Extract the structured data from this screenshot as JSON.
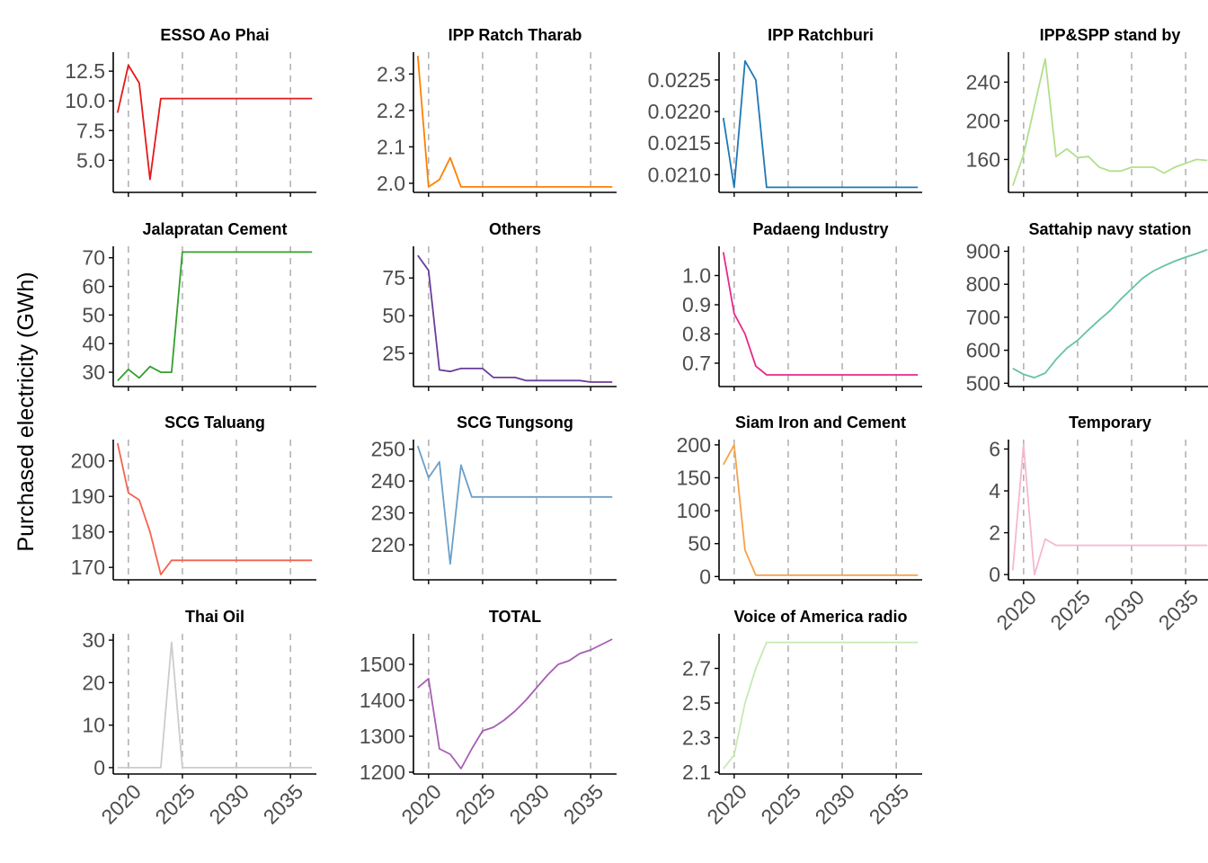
{
  "chart_data": {
    "type": "line",
    "ylabel": "Purchased electricity (GWh)",
    "xlabel": "",
    "grid": "dashed vertical lines at x ticks",
    "x_ticks": [
      "2020",
      "2025",
      "2030",
      "2035"
    ],
    "years": [
      2019,
      2020,
      2021,
      2022,
      2023,
      2024,
      2025,
      2026,
      2027,
      2028,
      2029,
      2030,
      2031,
      2032,
      2033,
      2034,
      2035,
      2036,
      2037
    ],
    "panels": [
      {
        "title": "ESSO Ao Phai",
        "color": "#e31a1c",
        "ylim": [
          2.3,
          14.1
        ],
        "yticks": [
          "12.5",
          "10.0",
          "7.5",
          "5.0"
        ],
        "ytick_values": [
          12.5,
          10,
          7.5,
          5
        ],
        "values": [
          9,
          13,
          11.5,
          3.4,
          10.2,
          10.2,
          10.2,
          10.2,
          10.2,
          10.2,
          10.2,
          10.2,
          10.2,
          10.2,
          10.2,
          10.2,
          10.2,
          10.2,
          10.2
        ]
      },
      {
        "title": "IPP Ratch Tharab",
        "color": "#ff7f00",
        "ylim": [
          1.975,
          2.36
        ],
        "yticks": [
          "2.3",
          "2.2",
          "2.1",
          "2.0"
        ],
        "ytick_values": [
          2.3,
          2.2,
          2.1,
          2.0
        ],
        "values": [
          2.35,
          1.99,
          2.01,
          2.07,
          1.99,
          1.99,
          1.99,
          1.99,
          1.99,
          1.99,
          1.99,
          1.99,
          1.99,
          1.99,
          1.99,
          1.99,
          1.99,
          1.99,
          1.99
        ]
      },
      {
        "title": "IPP Ratchburi",
        "color": "#1f78b4",
        "ylim": [
          0.02072,
          0.02294
        ],
        "yticks": [
          "0.0225",
          "0.0220",
          "0.0215",
          "0.0210"
        ],
        "ytick_values": [
          0.0225,
          0.022,
          0.0215,
          0.021
        ],
        "values": [
          0.0219,
          0.0208,
          0.0228,
          0.0225,
          0.0208,
          0.0208,
          0.0208,
          0.0208,
          0.0208,
          0.0208,
          0.0208,
          0.0208,
          0.0208,
          0.0208,
          0.0208,
          0.0208,
          0.0208,
          0.0208,
          0.0208
        ]
      },
      {
        "title": "IPP&SPP stand by",
        "color": "#b2df8a",
        "ylim": [
          126,
          271
        ],
        "yticks": [
          "240",
          "200",
          "160"
        ],
        "ytick_values": [
          240,
          200,
          160
        ],
        "values": [
          133,
          165,
          215,
          264,
          163,
          171,
          162,
          163,
          152,
          148,
          148,
          152,
          152,
          152,
          146,
          152,
          156,
          160,
          159
        ]
      },
      {
        "title": "Jalapratan Cement",
        "color": "#33a02c",
        "ylim": [
          25,
          74
        ],
        "yticks": [
          "70",
          "60",
          "50",
          "40",
          "30"
        ],
        "ytick_values": [
          70,
          60,
          50,
          40,
          30
        ],
        "values": [
          27,
          31,
          28,
          32,
          30,
          30,
          72,
          72,
          72,
          72,
          72,
          72,
          72,
          72,
          72,
          72,
          72,
          72,
          72
        ]
      },
      {
        "title": "Others",
        "color": "#6a3d9a",
        "ylim": [
          3,
          96
        ],
        "yticks": [
          "75",
          "50",
          "25"
        ],
        "ytick_values": [
          75,
          50,
          25
        ],
        "values": [
          90,
          80,
          14,
          13,
          15,
          15,
          15,
          9,
          9,
          9,
          7,
          7,
          7,
          7,
          7,
          7,
          6,
          6,
          6
        ]
      },
      {
        "title": "Padaeng Industry",
        "color": "#e7298a",
        "ylim": [
          0.62,
          1.1
        ],
        "yticks": [
          "1.0",
          "0.9",
          "0.8",
          "0.7"
        ],
        "ytick_values": [
          1.0,
          0.9,
          0.8,
          0.7
        ],
        "values": [
          1.08,
          0.87,
          0.8,
          0.69,
          0.66,
          0.66,
          0.66,
          0.66,
          0.66,
          0.66,
          0.66,
          0.66,
          0.66,
          0.66,
          0.66,
          0.66,
          0.66,
          0.66,
          0.66
        ]
      },
      {
        "title": "Sattahip navy station",
        "color": "#66c2a5",
        "ylim": [
          490,
          915
        ],
        "yticks": [
          "900",
          "800",
          "700",
          "600",
          "500"
        ],
        "ytick_values": [
          900,
          800,
          700,
          600,
          500
        ],
        "values": [
          545,
          527,
          517,
          531,
          572,
          606,
          630,
          662,
          692,
          720,
          755,
          786,
          818,
          840,
          856,
          870,
          882,
          893,
          905
        ]
      },
      {
        "title": "SCG Taluang",
        "color": "#f4634f",
        "ylim": [
          166.5,
          206
        ],
        "yticks": [
          "200",
          "190",
          "180",
          "170"
        ],
        "ytick_values": [
          200,
          190,
          180,
          170
        ],
        "values": [
          205,
          191,
          189,
          180,
          168,
          172,
          172,
          172,
          172,
          172,
          172,
          172,
          172,
          172,
          172,
          172,
          172,
          172,
          172
        ]
      },
      {
        "title": "SCG Tungsong",
        "color": "#6a9fc8",
        "ylim": [
          209,
          253
        ],
        "yticks": [
          "250",
          "240",
          "230",
          "220"
        ],
        "ytick_values": [
          250,
          240,
          230,
          220
        ],
        "values": [
          251,
          241,
          246,
          214,
          245,
          235,
          235,
          235,
          235,
          235,
          235,
          235,
          235,
          235,
          235,
          235,
          235,
          235,
          235
        ]
      },
      {
        "title": "Siam Iron and Cement",
        "color": "#f4a24a",
        "ylim": [
          -5,
          208
        ],
        "yticks": [
          "200",
          "150",
          "100",
          "50",
          "0"
        ],
        "ytick_values": [
          200,
          150,
          100,
          50,
          0
        ],
        "values": [
          170,
          200,
          40,
          2,
          2,
          2,
          2,
          2,
          2,
          2,
          2,
          2,
          2,
          2,
          2,
          2,
          2,
          2,
          2
        ]
      },
      {
        "title": "Temporary",
        "color": "#f7b6d2",
        "ylim": [
          -0.25,
          6.45
        ],
        "yticks": [
          "6",
          "4",
          "2",
          "0"
        ],
        "ytick_values": [
          6,
          4,
          2,
          0
        ],
        "values": [
          0.2,
          6.2,
          0,
          1.7,
          1.4,
          1.4,
          1.4,
          1.4,
          1.4,
          1.4,
          1.4,
          1.4,
          1.4,
          1.4,
          1.4,
          1.4,
          1.4,
          1.4,
          1.4
        ]
      },
      {
        "title": "Thai Oil",
        "color": "#cccccc",
        "ylim": [
          -1.5,
          31.5
        ],
        "yticks": [
          "30",
          "20",
          "10",
          "0"
        ],
        "ytick_values": [
          30,
          20,
          10,
          0
        ],
        "values": [
          0,
          0,
          0,
          0,
          0,
          29.5,
          0,
          0,
          0,
          0,
          0,
          0,
          0,
          0,
          0,
          0,
          0,
          0,
          0
        ]
      },
      {
        "title": "TOTAL",
        "color": "#a65fb2",
        "ylim": [
          1195,
          1585
        ],
        "yticks": [
          "1500",
          "1400",
          "1300",
          "1200"
        ],
        "ytick_values": [
          1500,
          1400,
          1300,
          1200
        ],
        "values": [
          1435,
          1460,
          1265,
          1250,
          1210,
          1265,
          1315,
          1325,
          1345,
          1370,
          1400,
          1435,
          1470,
          1500,
          1510,
          1530,
          1540,
          1555,
          1570
        ]
      },
      {
        "title": "Voice of America radio",
        "color": "#c7e9b4",
        "ylim": [
          2.09,
          2.9
        ],
        "yticks": [
          "2.7",
          "2.5",
          "2.3",
          "2.1"
        ],
        "ytick_values": [
          2.7,
          2.5,
          2.3,
          2.1
        ],
        "values": [
          2.12,
          2.2,
          2.5,
          2.7,
          2.85,
          2.85,
          2.85,
          2.85,
          2.85,
          2.85,
          2.85,
          2.85,
          2.85,
          2.85,
          2.85,
          2.85,
          2.85,
          2.85,
          2.85
        ]
      }
    ]
  }
}
